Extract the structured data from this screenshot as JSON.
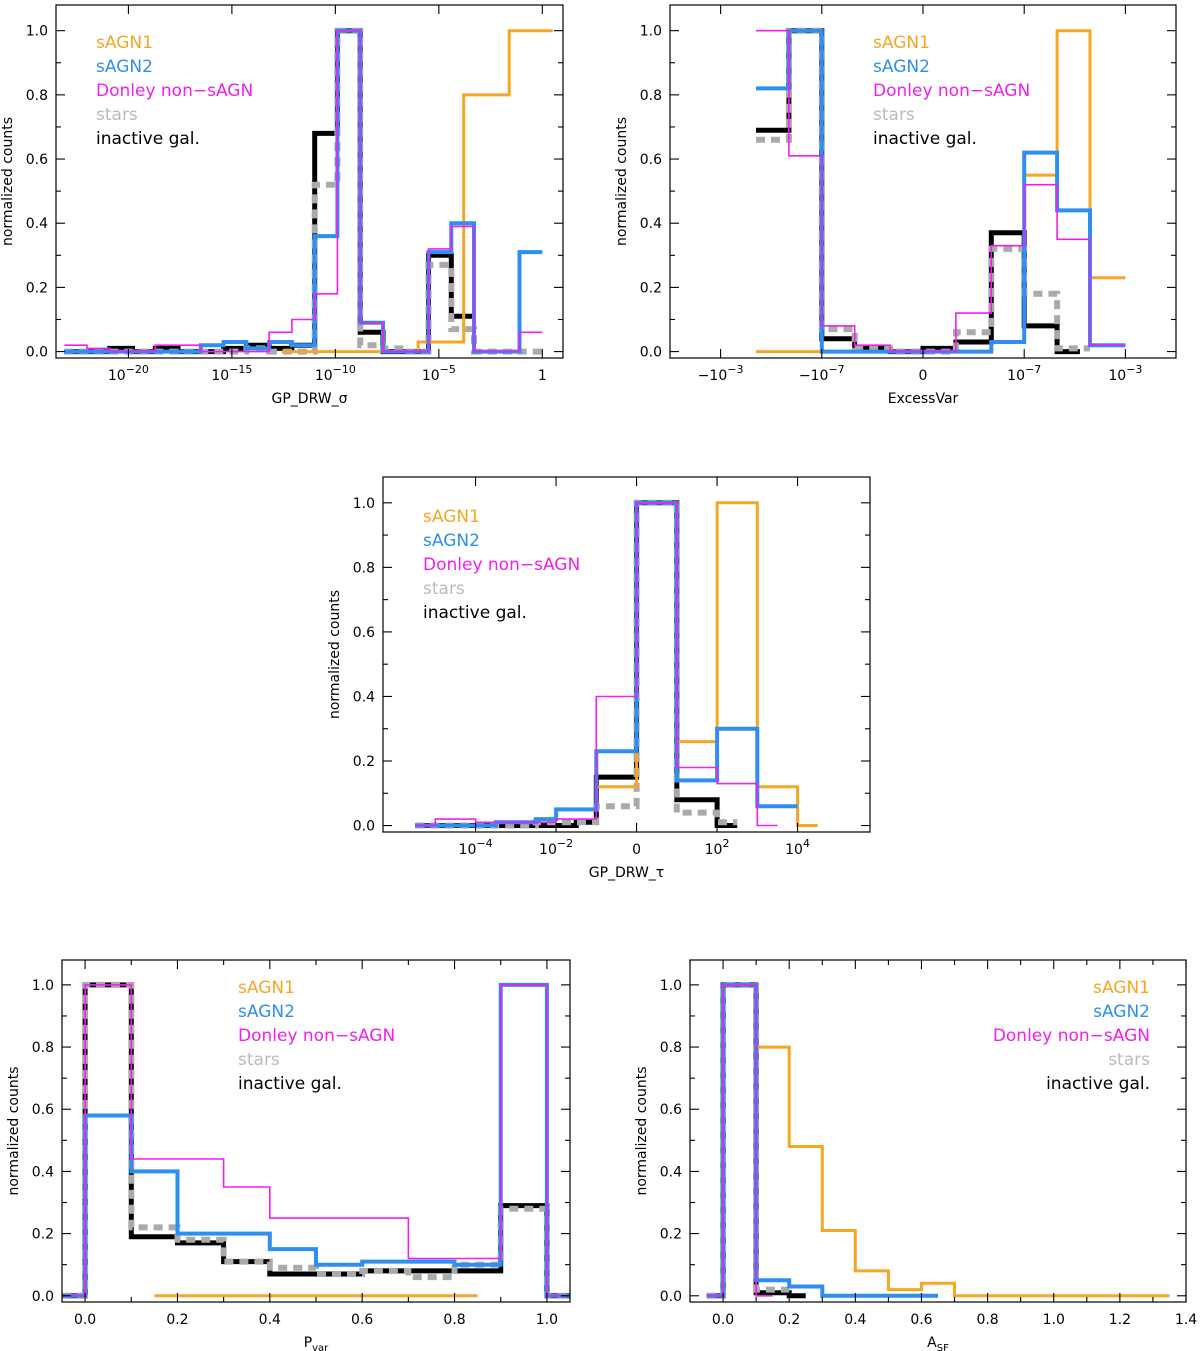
{
  "colors": {
    "sAGN1": "#f5a623",
    "sAGN2": "#2e8ff0",
    "donley": "#f01ff0",
    "stars": "#aaaaaa",
    "inactive": "#000000",
    "overlap": "#7a5cf0"
  },
  "chart_data": [
    {
      "type": "histogram",
      "panel": "1",
      "xlabel": "GP_DRW_σ",
      "ylabel": "normalized counts",
      "x_scale": "log10",
      "xlim": [
        -23.5,
        1.0
      ],
      "ylim": [
        -0.02,
        1.08
      ],
      "xticks": [
        {
          "v": -20,
          "base": "10",
          "exp": "−20"
        },
        {
          "v": -15,
          "base": "10",
          "exp": "−15"
        },
        {
          "v": -10,
          "base": "10",
          "exp": "−10"
        },
        {
          "v": -5,
          "base": "10",
          "exp": "−5"
        },
        {
          "v": 0,
          "base": "1",
          "exp": ""
        }
      ],
      "yticks": [
        "0.0",
        "0.2",
        "0.4",
        "0.6",
        "0.8",
        "1.0"
      ],
      "legend": {
        "position": "top-left",
        "entries": [
          "sAGN1",
          "sAGN2",
          "Donley non−sAGN",
          "stars",
          "inactive gal."
        ]
      },
      "series": [
        {
          "name": "sAGN1",
          "edges": [
            -12.6,
            -10.4,
            -8.2,
            -6.0,
            -3.8,
            -1.6,
            0.5
          ],
          "values": [
            0.0,
            0.0,
            0.0,
            0.03,
            0.8,
            1.0
          ]
        },
        {
          "name": "sAGN2",
          "edges": [
            -23.1,
            -22.0,
            -20.9,
            -19.8,
            -18.7,
            -17.6,
            -16.5,
            -15.4,
            -14.3,
            -13.2,
            -12.1,
            -11.0,
            -9.9,
            -8.8,
            -7.7,
            -6.6,
            -5.5,
            -4.4,
            -3.3,
            -2.2,
            -1.1,
            0.0
          ],
          "values": [
            0.0,
            0.0,
            0.0,
            0.0,
            0.0,
            0.0,
            0.02,
            0.03,
            0.01,
            0.03,
            0.02,
            0.36,
            1.0,
            0.09,
            0.0,
            0.0,
            0.31,
            0.4,
            0.0,
            0.0,
            0.31
          ]
        },
        {
          "name": "Donley non−sAGN",
          "edges": [
            -23.1,
            -22.0,
            -20.9,
            -19.8,
            -18.7,
            -17.6,
            -16.5,
            -15.4,
            -14.3,
            -13.2,
            -12.1,
            -11.0,
            -9.9,
            -8.8,
            -7.7,
            -6.6,
            -5.5,
            -4.4,
            -3.3,
            -2.2,
            -1.1,
            0.0
          ],
          "values": [
            0.02,
            0.01,
            0.0,
            0.0,
            0.02,
            0.02,
            0.0,
            0.0,
            0.0,
            0.06,
            0.1,
            0.18,
            1.0,
            0.09,
            0.0,
            0.0,
            0.32,
            0.39,
            0.0,
            0.0,
            0.06
          ]
        },
        {
          "name": "stars",
          "edges": [
            -23.1,
            -22.0,
            -20.9,
            -19.8,
            -18.7,
            -17.6,
            -16.5,
            -15.4,
            -14.3,
            -13.2,
            -12.1,
            -11.0,
            -9.9,
            -8.8,
            -7.7,
            -6.6,
            -5.5,
            -4.4,
            -3.3,
            -2.2,
            -1.1,
            0.0
          ],
          "values": [
            0.0,
            0.0,
            0.0,
            0.0,
            0.0,
            0.0,
            0.0,
            0.0,
            0.01,
            0.0,
            0.0,
            0.52,
            1.0,
            0.02,
            0.01,
            0.0,
            0.27,
            0.07,
            0.0,
            0.0,
            0.0
          ]
        },
        {
          "name": "inactive gal.",
          "edges": [
            -23.1,
            -22.0,
            -20.9,
            -19.8,
            -18.7,
            -17.6,
            -16.5,
            -15.4,
            -14.3,
            -13.2,
            -12.1,
            -11.0,
            -9.9,
            -8.8,
            -7.7,
            -6.6,
            -5.5,
            -4.4,
            -3.3
          ],
          "values": [
            0.0,
            0.0,
            0.01,
            0.0,
            0.01,
            0.0,
            0.0,
            0.01,
            0.02,
            0.01,
            0.02,
            0.68,
            1.0,
            0.06,
            0.0,
            0.0,
            0.3,
            0.11
          ]
        }
      ]
    },
    {
      "type": "histogram",
      "panel": "2",
      "xlabel": "ExcessVar",
      "ylabel": "normalized counts",
      "x_scale": "symlog",
      "xlim": [
        -10,
        10
      ],
      "ylim": [
        -0.02,
        1.08
      ],
      "xticks": [
        {
          "v": -8,
          "base": "−10",
          "exp": "−3"
        },
        {
          "v": -4,
          "base": "−10",
          "exp": "−7"
        },
        {
          "v": 0,
          "base": "0",
          "exp": ""
        },
        {
          "v": 4,
          "base": "10",
          "exp": "−7"
        },
        {
          "v": 8,
          "base": "10",
          "exp": "−3"
        }
      ],
      "yticks": [
        "0.0",
        "0.2",
        "0.4",
        "0.6",
        "0.8",
        "1.0"
      ],
      "legend": {
        "position": "top-right",
        "entries": [
          "sAGN1",
          "sAGN2",
          "Donley non−sAGN",
          "stars",
          "inactive gal."
        ]
      },
      "series": [
        {
          "name": "sAGN1",
          "edges": [
            -6.6,
            -5.3,
            -4.0,
            -2.7,
            -1.3,
            0.0,
            1.3,
            2.7,
            4.0,
            5.3,
            6.6,
            8.0
          ],
          "values": [
            0.0,
            0.0,
            0.0,
            0.0,
            0.0,
            0.0,
            0.0,
            0.03,
            0.55,
            1.0,
            0.23
          ]
        },
        {
          "name": "sAGN2",
          "edges": [
            -6.6,
            -5.3,
            -4.0,
            -2.7,
            -1.3,
            0.0,
            1.3,
            2.7,
            4.0,
            5.3,
            6.6,
            8.0
          ],
          "values": [
            0.82,
            1.0,
            0.0,
            0.0,
            0.0,
            0.0,
            0.0,
            0.03,
            0.62,
            0.44,
            0.02
          ]
        },
        {
          "name": "Donley non−sAGN",
          "edges": [
            -6.6,
            -5.3,
            -4.0,
            -2.7,
            -1.3,
            0.0,
            1.3,
            2.7,
            4.0,
            5.3,
            6.6,
            8.0
          ],
          "values": [
            1.0,
            0.61,
            0.08,
            0.02,
            0.0,
            0.0,
            0.12,
            0.33,
            0.52,
            0.35,
            0.02
          ]
        },
        {
          "name": "stars",
          "edges": [
            -6.6,
            -5.3,
            -4.0,
            -2.7,
            -1.3,
            0.0,
            1.3,
            2.7,
            4.0,
            5.3,
            6.6
          ],
          "values": [
            0.66,
            1.0,
            0.07,
            0.01,
            0.0,
            0.0,
            0.06,
            0.32,
            0.18,
            0.01
          ]
        },
        {
          "name": "inactive gal.",
          "edges": [
            -6.6,
            -5.3,
            -4.0,
            -2.7,
            -1.3,
            0.0,
            1.3,
            2.7,
            4.0,
            5.3,
            6.2
          ],
          "values": [
            0.69,
            1.0,
            0.04,
            0.01,
            0.0,
            0.01,
            0.03,
            0.37,
            0.08,
            0.0
          ]
        }
      ]
    },
    {
      "type": "histogram",
      "panel": "3",
      "xlabel": "GP_DRW_τ",
      "ylabel": "normalized counts",
      "x_scale": "symlog",
      "xlim": [
        -6.3,
        5.8
      ],
      "ylim": [
        -0.02,
        1.08
      ],
      "xticks": [
        {
          "v": -4,
          "base": "10",
          "exp": "−4"
        },
        {
          "v": -2,
          "base": "10",
          "exp": "−2"
        },
        {
          "v": 0,
          "base": "0",
          "exp": ""
        },
        {
          "v": 2,
          "base": "10",
          "exp": "2"
        },
        {
          "v": 4,
          "base": "10",
          "exp": "4"
        }
      ],
      "yticks": [
        "0.0",
        "0.2",
        "0.4",
        "0.6",
        "0.8",
        "1.0"
      ],
      "legend": {
        "position": "top-left",
        "entries": [
          "sAGN1",
          "sAGN2",
          "Donley non−sAGN",
          "stars",
          "inactive gal."
        ]
      },
      "series": [
        {
          "name": "sAGN1",
          "edges": [
            -1,
            0,
            1,
            2,
            3,
            4,
            4.5
          ],
          "values": [
            0.12,
            1.0,
            0.26,
            1.0,
            0.12,
            0.0
          ]
        },
        {
          "name": "sAGN2",
          "edges": [
            -5.5,
            -4.5,
            -3.5,
            -2.5,
            -2,
            -1,
            0,
            1,
            2,
            3,
            4
          ],
          "values": [
            0.0,
            0.0,
            0.01,
            0.02,
            0.05,
            0.23,
            1.0,
            0.14,
            0.3,
            0.06
          ]
        },
        {
          "name": "Donley non−sAGN",
          "edges": [
            -5.5,
            -5,
            -4,
            -3,
            -2,
            -1,
            0,
            1,
            2,
            3,
            3.5
          ],
          "values": [
            0.0,
            0.02,
            0.01,
            0.01,
            0.02,
            0.4,
            1.0,
            0.18,
            0.13,
            0.0
          ]
        },
        {
          "name": "stars",
          "edges": [
            -5.5,
            -4.5,
            -3.5,
            -2.5,
            -1.5,
            -1,
            0,
            1,
            2,
            2.5
          ],
          "values": [
            0.0,
            0.0,
            0.0,
            0.01,
            0.01,
            0.06,
            1.0,
            0.04,
            0.01
          ]
        },
        {
          "name": "inactive gal.",
          "edges": [
            -5.5,
            -4.5,
            -3.5,
            -2.5,
            -1.5,
            -1,
            0,
            1,
            2,
            2.5
          ],
          "values": [
            0.0,
            0.0,
            0.0,
            0.0,
            0.01,
            0.15,
            1.0,
            0.08,
            0.0
          ]
        }
      ]
    },
    {
      "type": "histogram",
      "panel": "4",
      "xlabel": "P",
      "xlabel_sub": "var",
      "ylabel": "normalized counts",
      "x_scale": "linear",
      "xlim": [
        -0.05,
        1.05
      ],
      "ylim": [
        -0.02,
        1.08
      ],
      "xticks": [
        {
          "v": 0.0,
          "base": "0.0",
          "exp": ""
        },
        {
          "v": 0.2,
          "base": "0.2",
          "exp": ""
        },
        {
          "v": 0.4,
          "base": "0.4",
          "exp": ""
        },
        {
          "v": 0.6,
          "base": "0.6",
          "exp": ""
        },
        {
          "v": 0.8,
          "base": "0.8",
          "exp": ""
        },
        {
          "v": 1.0,
          "base": "1.0",
          "exp": ""
        }
      ],
      "yticks": [
        "0.0",
        "0.2",
        "0.4",
        "0.6",
        "0.8",
        "1.0"
      ],
      "legend": {
        "position": "top-center",
        "entries": [
          "sAGN1",
          "sAGN2",
          "Donley non−sAGN",
          "stars",
          "inactive gal."
        ]
      },
      "series": [
        {
          "name": "sAGN1",
          "edges": [
            0.15,
            0.3,
            0.7,
            0.85
          ],
          "values": [
            0.0,
            0.0,
            0.0
          ]
        },
        {
          "name": "sAGN2",
          "edges": [
            -0.05,
            0.0,
            0.1,
            0.2,
            0.3,
            0.4,
            0.5,
            0.6,
            0.7,
            0.8,
            0.9,
            1.0,
            1.05
          ],
          "values": [
            0.0,
            0.58,
            0.4,
            0.2,
            0.2,
            0.15,
            0.1,
            0.11,
            0.11,
            0.1,
            1.0,
            0.0
          ]
        },
        {
          "name": "Donley non−sAGN",
          "edges": [
            -0.05,
            0.0,
            0.1,
            0.2,
            0.3,
            0.4,
            0.5,
            0.6,
            0.7,
            0.8,
            0.9,
            1.0,
            1.05
          ],
          "values": [
            0.0,
            1.0,
            0.44,
            0.44,
            0.35,
            0.25,
            0.25,
            0.25,
            0.12,
            0.12,
            1.0,
            0.0
          ]
        },
        {
          "name": "stars",
          "edges": [
            -0.05,
            0.0,
            0.1,
            0.15,
            0.2,
            0.3,
            0.4,
            0.5,
            0.6,
            0.7,
            0.8,
            0.9,
            1.0,
            1.05
          ],
          "values": [
            0.0,
            1.0,
            0.22,
            0.22,
            0.18,
            0.11,
            0.09,
            0.07,
            0.08,
            0.06,
            0.1,
            0.28,
            0.0
          ]
        },
        {
          "name": "inactive gal.",
          "edges": [
            -0.05,
            0.0,
            0.1,
            0.2,
            0.3,
            0.4,
            0.5,
            0.6,
            0.7,
            0.8,
            0.9,
            1.0,
            1.05
          ],
          "values": [
            0.0,
            1.0,
            0.19,
            0.17,
            0.11,
            0.07,
            0.07,
            0.08,
            0.08,
            0.08,
            0.29,
            0.0
          ]
        }
      ]
    },
    {
      "type": "histogram",
      "panel": "5",
      "xlabel": "A",
      "xlabel_sub": "SF",
      "ylabel": "normalized counts",
      "x_scale": "linear",
      "xlim": [
        -0.1,
        1.4
      ],
      "ylim": [
        -0.02,
        1.08
      ],
      "xticks": [
        {
          "v": 0.0,
          "base": "0.0",
          "exp": ""
        },
        {
          "v": 0.2,
          "base": "0.2",
          "exp": ""
        },
        {
          "v": 0.4,
          "base": "0.4",
          "exp": ""
        },
        {
          "v": 0.6,
          "base": "0.6",
          "exp": ""
        },
        {
          "v": 0.8,
          "base": "0.8",
          "exp": ""
        },
        {
          "v": 1.0,
          "base": "1.0",
          "exp": ""
        },
        {
          "v": 1.2,
          "base": "1.2",
          "exp": ""
        },
        {
          "v": 1.4,
          "base": "1.4",
          "exp": ""
        }
      ],
      "yticks": [
        "0.0",
        "0.2",
        "0.4",
        "0.6",
        "0.8",
        "1.0"
      ],
      "legend": {
        "position": "top-right",
        "entries": [
          "sAGN1",
          "sAGN2",
          "Donley non−sAGN",
          "stars",
          "inactive gal."
        ]
      },
      "series": [
        {
          "name": "sAGN1",
          "edges": [
            -0.05,
            0.0,
            0.1,
            0.2,
            0.3,
            0.4,
            0.5,
            0.6,
            0.7,
            1.3,
            1.35
          ],
          "values": [
            0.0,
            1.0,
            0.8,
            0.48,
            0.21,
            0.08,
            0.02,
            0.04,
            0.0,
            0.0
          ]
        },
        {
          "name": "sAGN2",
          "edges": [
            -0.05,
            0.0,
            0.1,
            0.2,
            0.3,
            0.4,
            0.65
          ],
          "values": [
            0.0,
            1.0,
            0.05,
            0.03,
            0.0,
            0.0
          ]
        },
        {
          "name": "Donley non−sAGN",
          "edges": [
            -0.05,
            0.0,
            0.1,
            0.15
          ],
          "values": [
            0.0,
            1.0,
            0.0
          ]
        },
        {
          "name": "stars",
          "edges": [
            -0.05,
            0.0,
            0.1,
            0.2
          ],
          "values": [
            0.0,
            1.0,
            0.02
          ]
        },
        {
          "name": "inactive gal.",
          "edges": [
            -0.05,
            0.0,
            0.1,
            0.2,
            0.25
          ],
          "values": [
            0.0,
            1.0,
            0.01,
            0.0
          ]
        }
      ]
    }
  ]
}
